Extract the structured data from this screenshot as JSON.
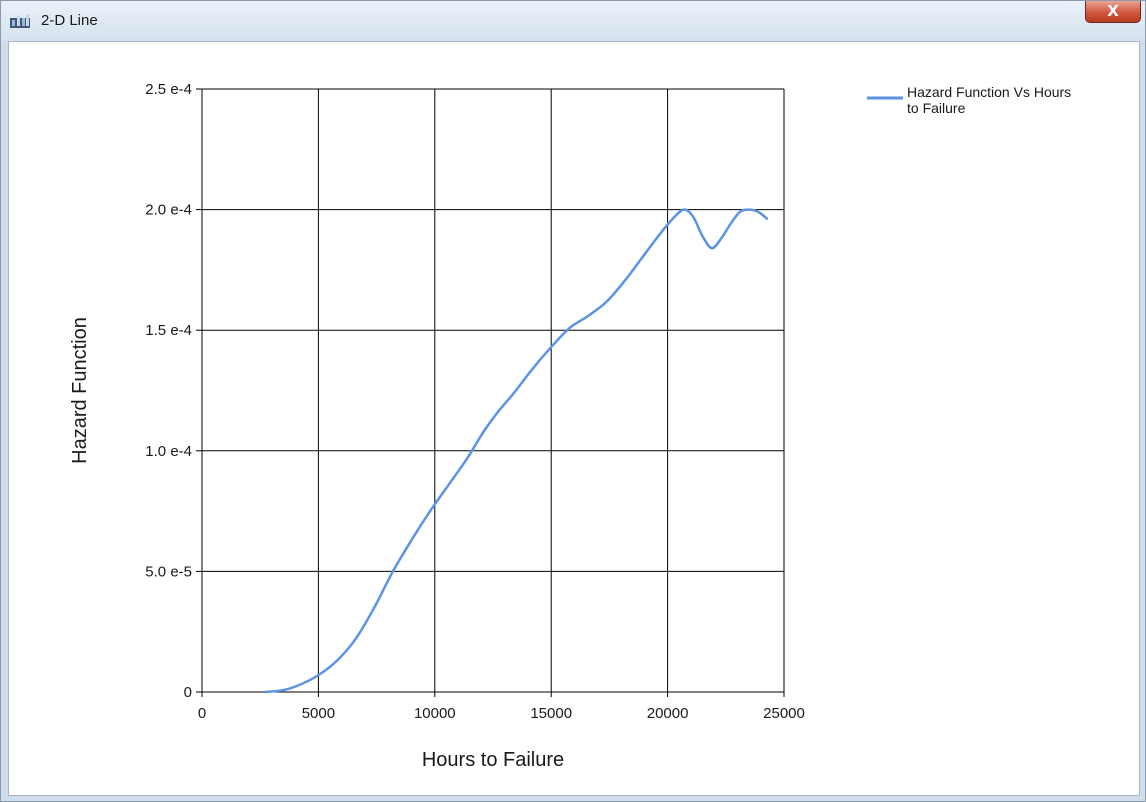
{
  "window": {
    "title": "2-D Line",
    "close_label": "X",
    "icon": "chart-app-icon"
  },
  "chart_data": {
    "type": "line",
    "title": "",
    "xlabel": "Hours to Failure",
    "ylabel": "Hazard Function",
    "xlim": [
      0,
      25000
    ],
    "ylim": [
      0,
      0.00025
    ],
    "x_ticks": [
      0,
      5000,
      10000,
      15000,
      20000,
      25000
    ],
    "x_tick_labels": [
      "0",
      "5000",
      "10000",
      "15000",
      "20000",
      "25000"
    ],
    "y_ticks": [
      0,
      5e-05,
      0.0001,
      0.00015,
      0.0002,
      0.00025
    ],
    "y_tick_labels": [
      "0",
      "5.0 e-5",
      "1.0 e-4",
      "1.5 e-4",
      "2.0 e-4",
      "2.5 e-4"
    ],
    "grid": true,
    "legend_position": "top-right",
    "legend_label_lines": [
      "Hazard Function Vs Hours",
      "to Failure"
    ],
    "series": [
      {
        "name": "Hazard Function Vs Hours to Failure",
        "color": "#5b93e6",
        "x": [
          2700,
          3500,
          4200,
          5000,
          5800,
          6600,
          7400,
          8200,
          9000,
          9800,
          10600,
          11400,
          12100,
          12700,
          13400,
          14200,
          15000,
          15800,
          16600,
          17400,
          18200,
          18900,
          19600,
          20200,
          20700,
          21100,
          21500,
          21900,
          22300,
          22700,
          23100,
          23500,
          23900,
          24300
        ],
        "y": [
          0,
          8e-07,
          3e-06,
          7e-06,
          1.3e-05,
          2.2e-05,
          3.5e-05,
          5e-05,
          6.3e-05,
          7.5e-05,
          8.6e-05,
          9.7e-05,
          0.000108,
          0.000116,
          0.000124,
          0.000134,
          0.000143,
          0.000151,
          0.000156,
          0.000162,
          0.000171,
          0.00018,
          0.000189,
          0.000196,
          0.0002,
          0.000197,
          0.000189,
          0.000184,
          0.000188,
          0.000194,
          0.000199,
          0.0002,
          0.000199,
          0.000196
        ]
      }
    ]
  }
}
